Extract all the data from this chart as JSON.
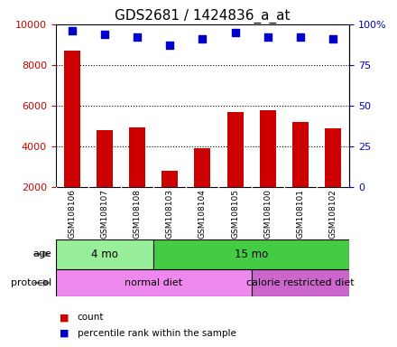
{
  "title": "GDS2681 / 1424836_a_at",
  "samples": [
    "GSM108106",
    "GSM108107",
    "GSM108108",
    "GSM108103",
    "GSM108104",
    "GSM108105",
    "GSM108100",
    "GSM108101",
    "GSM108102"
  ],
  "counts": [
    8700,
    4800,
    4950,
    2800,
    3900,
    5700,
    5800,
    5200,
    4900
  ],
  "percentile_ranks": [
    96,
    94,
    92,
    87,
    91,
    95,
    92,
    92,
    91
  ],
  "ylim_left": [
    2000,
    10000
  ],
  "ylim_right": [
    0,
    100
  ],
  "yticks_left": [
    2000,
    4000,
    6000,
    8000,
    10000
  ],
  "yticks_right": [
    0,
    25,
    50,
    75,
    100
  ],
  "ytick_labels_left": [
    "2000",
    "4000",
    "6000",
    "8000",
    "10000"
  ],
  "ytick_labels_right": [
    "0",
    "25",
    "50",
    "75",
    "100%"
  ],
  "bar_color": "#cc0000",
  "dot_color": "#0000cc",
  "age_groups": [
    {
      "label": "4 mo",
      "start": 0,
      "end": 3,
      "color": "#99ee99"
    },
    {
      "label": "15 mo",
      "start": 3,
      "end": 9,
      "color": "#44cc44"
    }
  ],
  "protocol_groups": [
    {
      "label": "normal diet",
      "start": 0,
      "end": 6,
      "color": "#ee88ee"
    },
    {
      "label": "calorie restricted diet",
      "start": 6,
      "end": 9,
      "color": "#cc66cc"
    }
  ],
  "background_color": "#ffffff",
  "tick_label_area_color": "#c8c8c8",
  "bar_width": 0.5,
  "dot_size": 6,
  "title_fontsize": 11,
  "tick_fontsize": 8,
  "label_fontsize": 8,
  "age_label": "age",
  "protocol_label": "protocol",
  "legend_count_color": "#cc0000",
  "legend_dot_color": "#0000cc"
}
